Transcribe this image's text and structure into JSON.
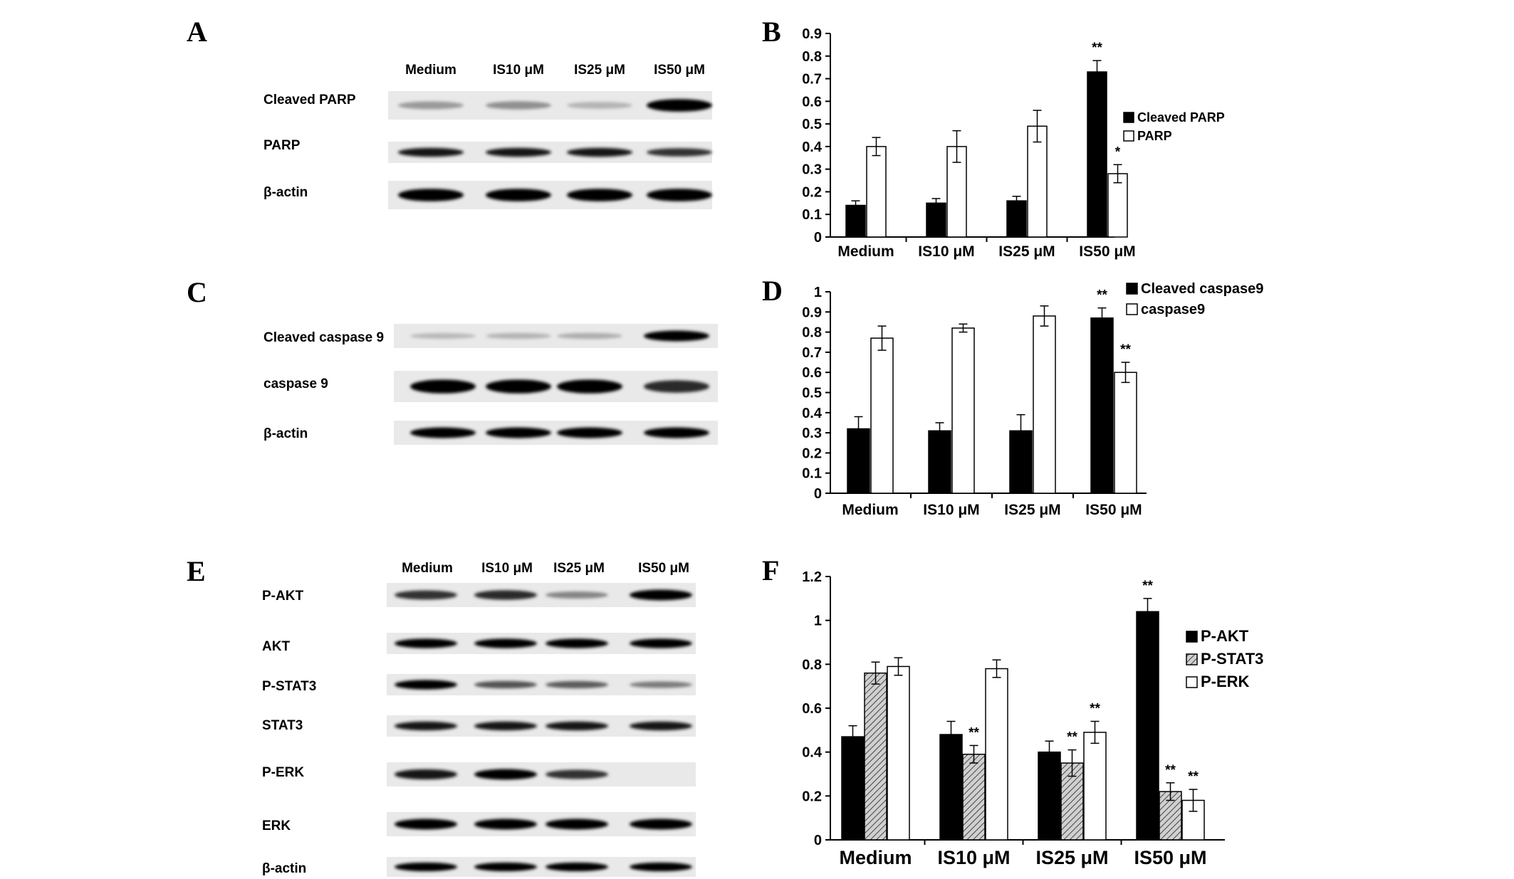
{
  "panels": {
    "A": {
      "letter": "A",
      "lanes": [
        "Medium",
        "IS10 μM",
        "IS25 μM",
        "IS50 μM"
      ],
      "rows": [
        {
          "label": "Cleaved PARP",
          "bands": [
            0.25,
            0.3,
            0.12,
            1.0
          ]
        },
        {
          "label": "PARP",
          "bands": [
            0.9,
            0.9,
            0.9,
            0.75
          ]
        },
        {
          "label": "β-actin",
          "bands": [
            1.0,
            1.0,
            1.0,
            1.0
          ]
        }
      ]
    },
    "C": {
      "letter": "C",
      "lanes": [],
      "rows": [
        {
          "label": "Cleaved caspase 9",
          "bands": [
            0.1,
            0.12,
            0.15,
            1.0
          ]
        },
        {
          "label": "caspase 9",
          "bands": [
            1.0,
            1.0,
            1.0,
            0.8
          ]
        },
        {
          "label": "β-actin",
          "bands": [
            1.0,
            1.0,
            1.0,
            1.0
          ]
        }
      ]
    },
    "E": {
      "letter": "E",
      "lanes": [
        "Medium",
        "IS10 μM",
        "IS25 μM",
        "IS50 μM"
      ],
      "rows": [
        {
          "label": "P-AKT",
          "bands": [
            0.75,
            0.8,
            0.35,
            1.0
          ]
        },
        {
          "label": "AKT",
          "bands": [
            1.0,
            1.0,
            1.0,
            1.0
          ]
        },
        {
          "label": "P-STAT3",
          "bands": [
            1.0,
            0.6,
            0.55,
            0.4
          ]
        },
        {
          "label": "STAT3",
          "bands": [
            0.9,
            0.9,
            0.9,
            0.9
          ]
        },
        {
          "label": "P-ERK",
          "bands": [
            0.9,
            1.0,
            0.75,
            0.0
          ]
        },
        {
          "label": "ERK",
          "bands": [
            1.0,
            1.0,
            1.0,
            1.0
          ]
        },
        {
          "label": "β-actin",
          "bands": [
            1.0,
            1.0,
            1.0,
            1.0
          ]
        }
      ]
    }
  },
  "chart_data": [
    {
      "panel": "B",
      "type": "bar",
      "categories": [
        "Medium",
        "IS10 μM",
        "IS25 μM",
        "IS50 μM"
      ],
      "ylim": [
        0,
        0.9
      ],
      "yticks": [
        0,
        0.1,
        0.2,
        0.3,
        0.4,
        0.5,
        0.6,
        0.7,
        0.8,
        0.9
      ],
      "xlabel": "",
      "ylabel": "",
      "legend_position": "right",
      "series": [
        {
          "name": "Cleaved PARP",
          "color": "#000000",
          "values": [
            0.14,
            0.15,
            0.16,
            0.73
          ],
          "errors": [
            0.02,
            0.02,
            0.02,
            0.05
          ],
          "sig": [
            "",
            "",
            "",
            "**"
          ]
        },
        {
          "name": "PARP",
          "color": "#ffffff",
          "values": [
            0.4,
            0.4,
            0.49,
            0.28
          ],
          "errors": [
            0.04,
            0.07,
            0.07,
            0.04
          ],
          "sig": [
            "",
            "",
            "",
            "*"
          ]
        }
      ]
    },
    {
      "panel": "D",
      "type": "bar",
      "categories": [
        "Medium",
        "IS10 μM",
        "IS25 μM",
        "IS50 μM"
      ],
      "ylim": [
        0,
        1
      ],
      "yticks": [
        0,
        0.1,
        0.2,
        0.3,
        0.4,
        0.5,
        0.6,
        0.7,
        0.8,
        0.9,
        1
      ],
      "xlabel": "",
      "ylabel": "",
      "legend_position": "top-right",
      "series": [
        {
          "name": "Cleaved caspase9",
          "color": "#000000",
          "values": [
            0.32,
            0.31,
            0.31,
            0.87
          ],
          "errors": [
            0.06,
            0.04,
            0.08,
            0.05
          ],
          "sig": [
            "",
            "",
            "",
            "**"
          ]
        },
        {
          "name": "caspase9",
          "color": "#ffffff",
          "values": [
            0.77,
            0.82,
            0.88,
            0.6
          ],
          "errors": [
            0.06,
            0.02,
            0.05,
            0.05
          ],
          "sig": [
            "",
            "",
            "",
            "**"
          ]
        }
      ]
    },
    {
      "panel": "F",
      "type": "bar",
      "categories": [
        "Medium",
        "IS10 μM",
        "IS25 μM",
        "IS50 μM"
      ],
      "ylim": [
        0,
        1.2
      ],
      "yticks": [
        0,
        0.2,
        0.4,
        0.6,
        0.8,
        1,
        1.2
      ],
      "xlabel": "",
      "ylabel": "",
      "legend_position": "right",
      "series": [
        {
          "name": "P-AKT",
          "color": "#000000",
          "values": [
            0.47,
            0.48,
            0.4,
            1.04
          ],
          "errors": [
            0.05,
            0.06,
            0.05,
            0.06
          ],
          "sig": [
            "",
            "",
            "",
            "**"
          ]
        },
        {
          "name": "P-STAT3",
          "color": "hatched",
          "values": [
            0.76,
            0.39,
            0.35,
            0.22
          ],
          "errors": [
            0.05,
            0.04,
            0.06,
            0.04
          ],
          "sig": [
            "",
            "**",
            "**",
            "**"
          ]
        },
        {
          "name": "P-ERK",
          "color": "#ffffff",
          "values": [
            0.79,
            0.78,
            0.49,
            0.18
          ],
          "errors": [
            0.04,
            0.04,
            0.05,
            0.05
          ],
          "sig": [
            "",
            "",
            "**",
            "**"
          ]
        }
      ]
    }
  ]
}
